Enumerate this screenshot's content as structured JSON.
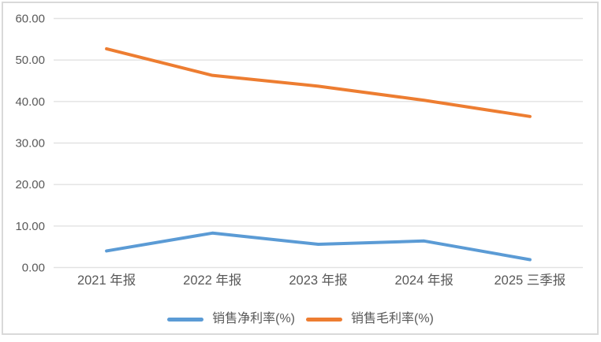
{
  "chart_data": {
    "type": "line",
    "title": "",
    "xlabel": "",
    "ylabel": "",
    "categories": [
      "2021 年报",
      "2022 年报",
      "2023 年报",
      "2024 年报",
      "2025 三季报"
    ],
    "series": [
      {
        "name": "销售净利率(%)",
        "values": [
          4.0,
          8.3,
          5.6,
          6.4,
          1.9
        ],
        "color": "#5B9BD5"
      },
      {
        "name": "销售毛利率(%)",
        "values": [
          52.7,
          46.3,
          43.7,
          40.3,
          36.4
        ],
        "color": "#ED7D31"
      }
    ],
    "ylim": [
      0,
      60
    ],
    "ytick_labels": [
      "0.00",
      "10.00",
      "20.00",
      "30.00",
      "40.00",
      "50.00",
      "60.00"
    ],
    "grid": true,
    "legend_position": "bottom"
  },
  "colors": {
    "gridline": "#E2E2E2",
    "frame_border": "#D9D9D9",
    "axis_text": "#595959",
    "background": "#FFFFFF"
  }
}
